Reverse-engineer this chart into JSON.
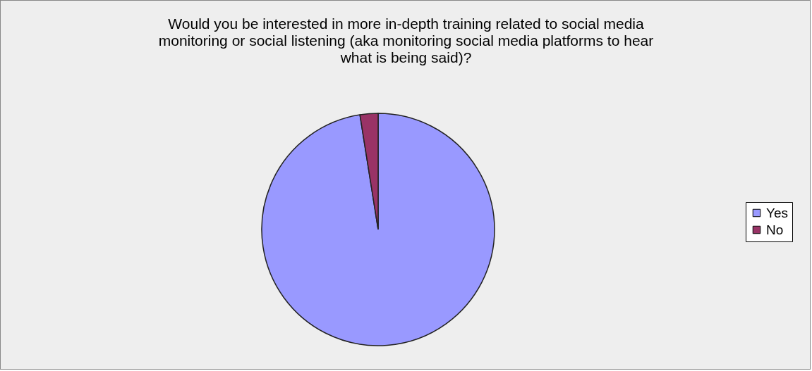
{
  "chart_data": {
    "type": "pie",
    "title": "Would you be interested in more in-depth training related to social media monitoring or social listening (aka monitoring social media platforms to hear what is being said)?",
    "categories": [
      "Yes",
      "No"
    ],
    "values": [
      97.5,
      2.5
    ],
    "colors": [
      "#9999ff",
      "#993366"
    ],
    "legend": "right"
  }
}
